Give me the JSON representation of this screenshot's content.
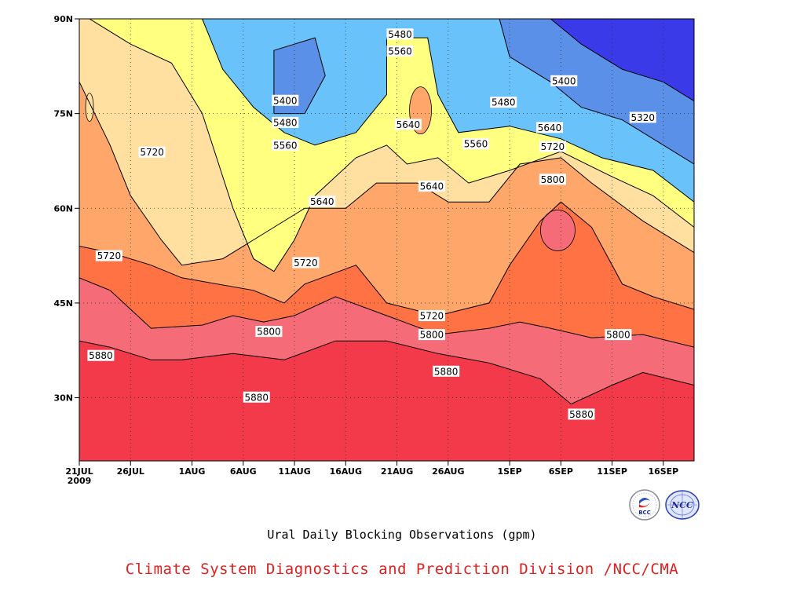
{
  "chart_data": {
    "type": "heatmap",
    "title": "Ural Daily Blocking Observations (gpm)",
    "subtitle": "",
    "xlabel": "",
    "ylabel": "",
    "x_range": [
      "2009-07-21",
      "2009-09-19"
    ],
    "x_tick_labels": [
      "21JUL",
      "26JUL",
      "1AUG",
      "6AUG",
      "11AUG",
      "16AUG",
      "21AUG",
      "26AUG",
      "1SEP",
      "6SEP",
      "11SEP",
      "16SEP"
    ],
    "x_tick_days": [
      0,
      5,
      11,
      16,
      21,
      26,
      31,
      36,
      42,
      47,
      52,
      57
    ],
    "x_year_label": "2009",
    "y_range": [
      20,
      90
    ],
    "y_tick_labels": [
      "90N",
      "75N",
      "60N",
      "45N",
      "30N"
    ],
    "y_tick_values": [
      90,
      75,
      60,
      45,
      30
    ],
    "grid": true,
    "contour_levels": [
      5240,
      5320,
      5400,
      5480,
      5560,
      5640,
      5720,
      5800,
      5880
    ],
    "fill_colors": [
      "#1a1ad8",
      "#3a3ae8",
      "#5a90e8",
      "#6ac2fa",
      "#ffff80",
      "#ffe0a0",
      "#ffa76a",
      "#ff7244",
      "#f56c78",
      "#f23a4a"
    ],
    "contour_lines": [
      {
        "level": 5880,
        "points": [
          [
            0,
            39
          ],
          [
            3,
            38
          ],
          [
            7,
            36
          ],
          [
            10,
            36
          ],
          [
            15,
            37
          ],
          [
            20,
            36
          ],
          [
            25,
            39
          ],
          [
            30,
            39
          ],
          [
            35,
            37
          ],
          [
            40,
            35.5
          ],
          [
            45,
            33
          ],
          [
            48,
            29
          ],
          [
            52,
            32
          ],
          [
            55,
            34
          ],
          [
            60,
            32
          ]
        ]
      },
      {
        "level": 5800,
        "points": [
          [
            0,
            49
          ],
          [
            3,
            47
          ],
          [
            7,
            41
          ],
          [
            12,
            41.5
          ],
          [
            15,
            43
          ],
          [
            18,
            42
          ],
          [
            21,
            43
          ],
          [
            25,
            46
          ],
          [
            30,
            43
          ],
          [
            35,
            40
          ],
          [
            40,
            41
          ],
          [
            43,
            42
          ],
          [
            46,
            41
          ],
          [
            50,
            39.5
          ],
          [
            55,
            40
          ],
          [
            60,
            38
          ]
        ]
      },
      {
        "level": 5720,
        "points": [
          [
            0,
            54
          ],
          [
            3,
            53
          ],
          [
            7,
            51
          ],
          [
            10,
            49
          ],
          [
            17,
            47
          ],
          [
            20,
            45
          ],
          [
            22,
            48
          ],
          [
            27,
            51
          ],
          [
            30,
            45
          ],
          [
            35,
            43
          ],
          [
            40,
            45
          ],
          [
            42,
            51
          ],
          [
            45,
            58
          ],
          [
            47,
            61
          ],
          [
            50,
            57
          ],
          [
            53,
            48
          ],
          [
            56,
            46
          ],
          [
            60,
            44
          ]
        ]
      },
      {
        "level": 5640,
        "points": [
          [
            0,
            80
          ],
          [
            3,
            70
          ],
          [
            5,
            62
          ],
          [
            8,
            55
          ],
          [
            10,
            51
          ],
          [
            14,
            52
          ],
          [
            18,
            56
          ],
          [
            22,
            60
          ],
          [
            26,
            60
          ],
          [
            29,
            64
          ],
          [
            33,
            64
          ],
          [
            36,
            61
          ],
          [
            40,
            61
          ],
          [
            43,
            67
          ],
          [
            47,
            68
          ],
          [
            50,
            64
          ],
          [
            55,
            58
          ],
          [
            60,
            53
          ]
        ]
      },
      {
        "level": 5560,
        "points": [
          [
            1,
            90
          ],
          [
            5,
            86
          ],
          [
            9,
            83
          ],
          [
            12,
            75
          ],
          [
            15,
            60
          ],
          [
            17,
            52
          ],
          [
            19,
            50
          ],
          [
            21,
            55
          ],
          [
            23,
            62
          ],
          [
            27,
            68
          ],
          [
            30,
            70
          ],
          [
            32,
            67
          ],
          [
            35,
            68
          ],
          [
            38,
            64
          ],
          [
            42,
            66
          ],
          [
            47,
            69
          ],
          [
            52,
            65
          ],
          [
            56,
            62
          ],
          [
            60,
            57
          ]
        ]
      },
      {
        "level": 5480,
        "points": [
          [
            12,
            90
          ],
          [
            14,
            82
          ],
          [
            17,
            76
          ],
          [
            20,
            72
          ],
          [
            23,
            70
          ],
          [
            27,
            72
          ],
          [
            30,
            78
          ],
          [
            30,
            87
          ],
          [
            34,
            87
          ],
          [
            35,
            78
          ],
          [
            37,
            72
          ],
          [
            42,
            73
          ],
          [
            47,
            71
          ],
          [
            51,
            68
          ],
          [
            56,
            66
          ],
          [
            60,
            61
          ]
        ]
      },
      {
        "level": 5400,
        "points": [
          [
            19,
            75
          ],
          [
            19,
            85
          ],
          [
            23,
            87
          ],
          [
            24,
            81
          ],
          [
            22,
            75
          ],
          [
            19,
            75
          ]
        ]
      },
      {
        "level": 5400,
        "points": [
          [
            41,
            90
          ],
          [
            42,
            84
          ],
          [
            46,
            80
          ],
          [
            49,
            76
          ],
          [
            53,
            74
          ],
          [
            56,
            71
          ],
          [
            60,
            67
          ]
        ]
      },
      {
        "level": 5320,
        "points": [
          [
            46,
            90
          ],
          [
            49,
            86
          ],
          [
            53,
            82
          ],
          [
            57,
            80
          ],
          [
            60,
            77
          ]
        ]
      }
    ],
    "contour_labels": [
      {
        "text": "5880",
        "x": 2.1,
        "y": 36.7
      },
      {
        "text": "5880",
        "x": 17.3,
        "y": 30.1
      },
      {
        "text": "5880",
        "x": 35.8,
        "y": 34.2
      },
      {
        "text": "5880",
        "x": 49.0,
        "y": 27.4
      },
      {
        "text": "5800",
        "x": 18.5,
        "y": 40.5
      },
      {
        "text": "5800",
        "x": 34.4,
        "y": 40.0
      },
      {
        "text": "5800",
        "x": 52.6,
        "y": 40.0
      },
      {
        "text": "5720",
        "x": 2.9,
        "y": 52.5
      },
      {
        "text": "5720",
        "x": 7.1,
        "y": 68.9
      },
      {
        "text": "5720",
        "x": 22.1,
        "y": 51.4
      },
      {
        "text": "5720",
        "x": 34.4,
        "y": 43.0
      },
      {
        "text": "5720",
        "x": 46.2,
        "y": 69.8
      },
      {
        "text": "5800",
        "x": 46.2,
        "y": 64.6
      },
      {
        "text": "5640",
        "x": 23.7,
        "y": 61.1
      },
      {
        "text": "5640",
        "x": 34.4,
        "y": 63.5
      },
      {
        "text": "5640",
        "x": 32.1,
        "y": 73.3
      },
      {
        "text": "5640",
        "x": 45.9,
        "y": 72.8
      },
      {
        "text": "5560",
        "x": 20.1,
        "y": 70.0
      },
      {
        "text": "5560",
        "x": 38.7,
        "y": 70.2
      },
      {
        "text": "5560",
        "x": 31.3,
        "y": 84.9
      },
      {
        "text": "5480",
        "x": 20.1,
        "y": 73.6
      },
      {
        "text": "5480",
        "x": 31.3,
        "y": 87.6
      },
      {
        "text": "5480",
        "x": 41.4,
        "y": 76.8
      },
      {
        "text": "5400",
        "x": 20.1,
        "y": 77.1
      },
      {
        "text": "5400",
        "x": 47.3,
        "y": 80.2
      },
      {
        "text": "5320",
        "x": 55.0,
        "y": 74.4
      }
    ]
  },
  "caption": "Ural Daily Blocking Observations (gpm)",
  "credit": "Climate System Diagnostics and Prediction Division /NCC/CMA",
  "logos": {
    "bcc_text": "BCC",
    "ncc_text": "NCC"
  }
}
